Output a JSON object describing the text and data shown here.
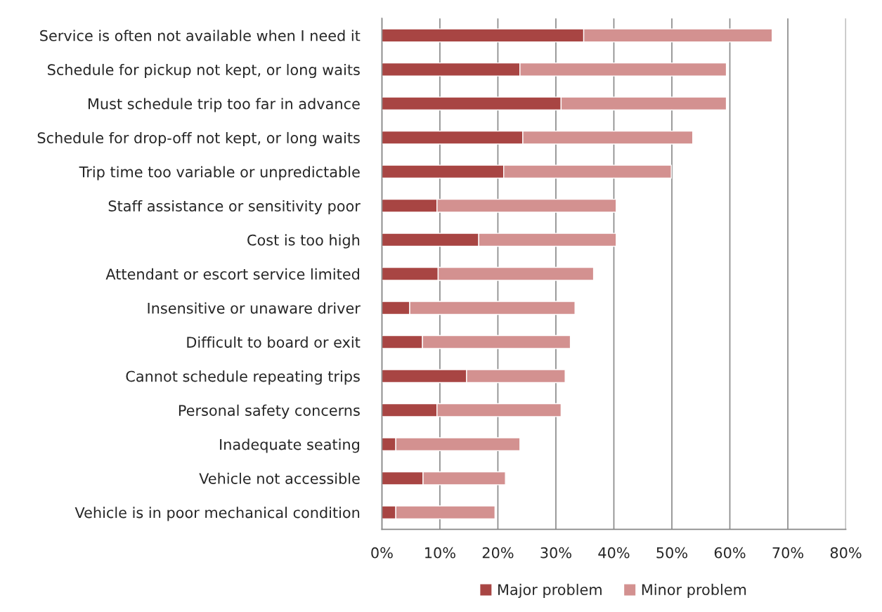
{
  "chart_data": {
    "type": "bar",
    "orientation": "horizontal",
    "stacked": true,
    "categories": [
      "Service is often not available when I need it",
      "Schedule for pickup not kept, or long waits",
      "Must schedule trip too far in advance",
      "Schedule for drop-off not kept, or long waits",
      "Trip time too variable or unpredictable",
      "Staff assistance or sensitivity poor",
      "Cost is too high",
      "Attendant or escort service limited",
      "Insensitive or unaware driver",
      "Difficult to board or exit",
      "Cannot schedule repeating trips",
      "Personal safety concerns",
      "Inadequate seating",
      "Vehicle not accessible",
      "Vehicle is in poor mechanical condition"
    ],
    "series": [
      {
        "name": "Major problem",
        "color": "#a84543",
        "values": [
          34.8,
          23.8,
          30.9,
          24.3,
          21.0,
          9.5,
          16.7,
          9.7,
          4.8,
          7.0,
          14.6,
          9.5,
          2.4,
          7.1,
          2.4
        ]
      },
      {
        "name": "Minor problem",
        "color": "#d39190",
        "values": [
          32.5,
          35.6,
          28.5,
          29.3,
          28.9,
          30.9,
          23.7,
          26.8,
          28.5,
          25.5,
          17.0,
          21.4,
          21.4,
          14.2,
          17.1
        ]
      }
    ],
    "xlim": [
      0,
      80
    ],
    "xticks": [
      {
        "value": 0,
        "label": "0%"
      },
      {
        "value": 10,
        "label": "10%"
      },
      {
        "value": 20,
        "label": "20%"
      },
      {
        "value": 30,
        "label": "30%"
      },
      {
        "value": 40,
        "label": "40%"
      },
      {
        "value": 50,
        "label": "50%"
      },
      {
        "value": 60,
        "label": "60%"
      },
      {
        "value": 70,
        "label": "70%"
      },
      {
        "value": 80,
        "label": "80%"
      }
    ],
    "grid": "x",
    "legend": "bottom"
  }
}
